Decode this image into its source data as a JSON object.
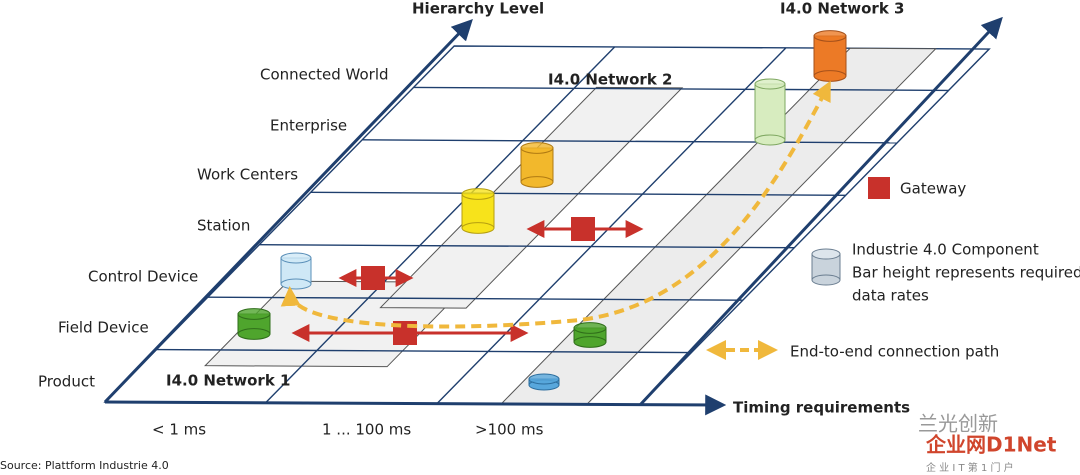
{
  "axes": {
    "vertical": "Hierarchy Level",
    "horizontal": "Timing requirements"
  },
  "levels": [
    "Connected World",
    "Enterprise",
    "Work Centers",
    "Station",
    "Control Device",
    "Field Device",
    "Product"
  ],
  "timing": [
    "< 1 ms",
    "1 ... 100 ms",
    ">100 ms"
  ],
  "networks": [
    "I4.0 Network 1",
    "I4.0 Network 2",
    "I4.0 Network 3"
  ],
  "legend": {
    "gateway": "Gateway",
    "component": [
      "Industrie 4.0 Component",
      "Bar height represents required",
      "data rates"
    ],
    "path": "End-to-end connection path"
  },
  "source": "Source: Plattform Industrie 4.0",
  "watermark": [
    "兰光创新",
    "企业网D1Net",
    "企 业 I T 第 1 门 户"
  ]
}
